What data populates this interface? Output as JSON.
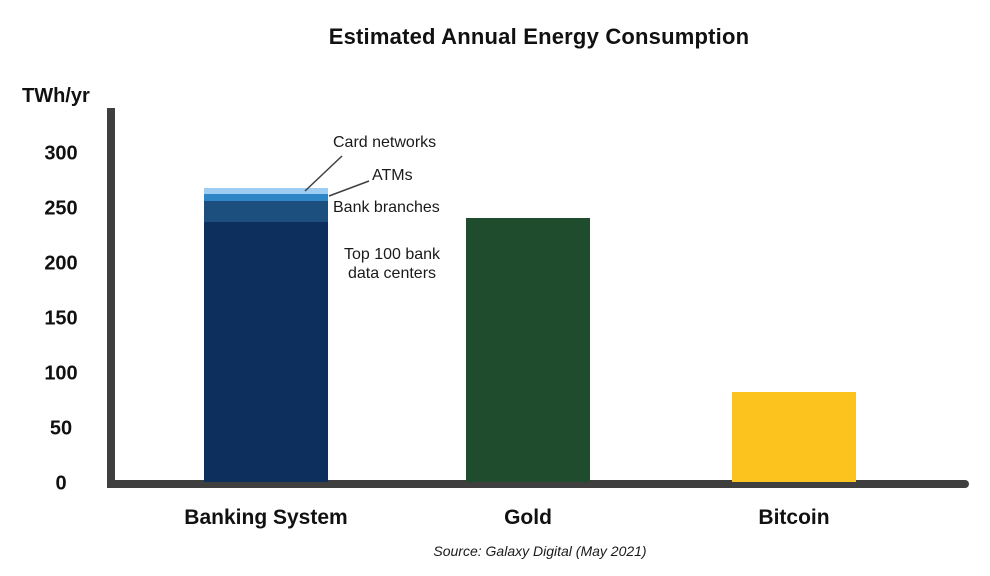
{
  "title": "Estimated Annual Energy Consumption",
  "y_axis_unit": "TWh/yr",
  "source": "Source: Galaxy Digital (May 2021)",
  "colors": {
    "axis": "#3f3f3f",
    "text": "#111111",
    "banking_data_centers": "#0d2f5e",
    "banking_branches": "#1d4f7e",
    "banking_atms": "#2e86c6",
    "banking_card_networks": "#9dcdf2",
    "gold": "#1f4c2d",
    "bitcoin": "#fcc21e"
  },
  "chart_data": {
    "type": "bar",
    "stacked": true,
    "title": "Estimated Annual Energy Consumption",
    "ylabel": "TWh/yr",
    "ylim": [
      0,
      330
    ],
    "y_ticks": [
      300,
      250,
      200,
      150,
      100,
      50,
      0
    ],
    "grid": false,
    "legend_position": "none",
    "categories": [
      "Banking System",
      "Gold",
      "Bitcoin"
    ],
    "totals": [
      267,
      240,
      82
    ],
    "bars": [
      {
        "category": "Banking System",
        "total": 267,
        "segments": [
          {
            "label": "Top 100 bank data centers",
            "value": 236,
            "color": "#0d2f5e"
          },
          {
            "label": "Bank branches",
            "value": 19,
            "color": "#1d4f7e"
          },
          {
            "label": "ATMs",
            "value": 7,
            "color": "#2e86c6"
          },
          {
            "label": "Card networks",
            "value": 5,
            "color": "#9dcdf2"
          }
        ]
      },
      {
        "category": "Gold",
        "total": 240,
        "segments": [
          {
            "label": "Gold",
            "value": 240,
            "color": "#1f4c2d"
          }
        ]
      },
      {
        "category": "Bitcoin",
        "total": 82,
        "segments": [
          {
            "label": "Bitcoin",
            "value": 82,
            "color": "#fcc21e"
          }
        ]
      }
    ]
  }
}
